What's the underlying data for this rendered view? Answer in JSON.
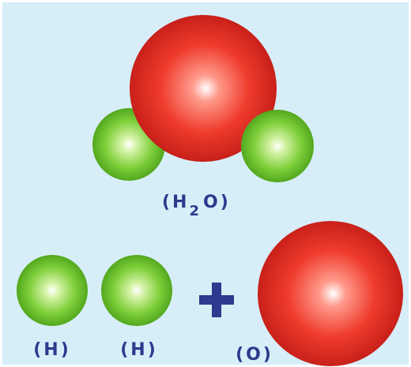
{
  "molecule": {
    "label": {
      "open": "(H",
      "subscript": "2",
      "close": "O)"
    }
  },
  "atoms": [
    {
      "label": "(H)"
    },
    {
      "label": "(H)"
    },
    {
      "label": "(O)"
    }
  ]
}
